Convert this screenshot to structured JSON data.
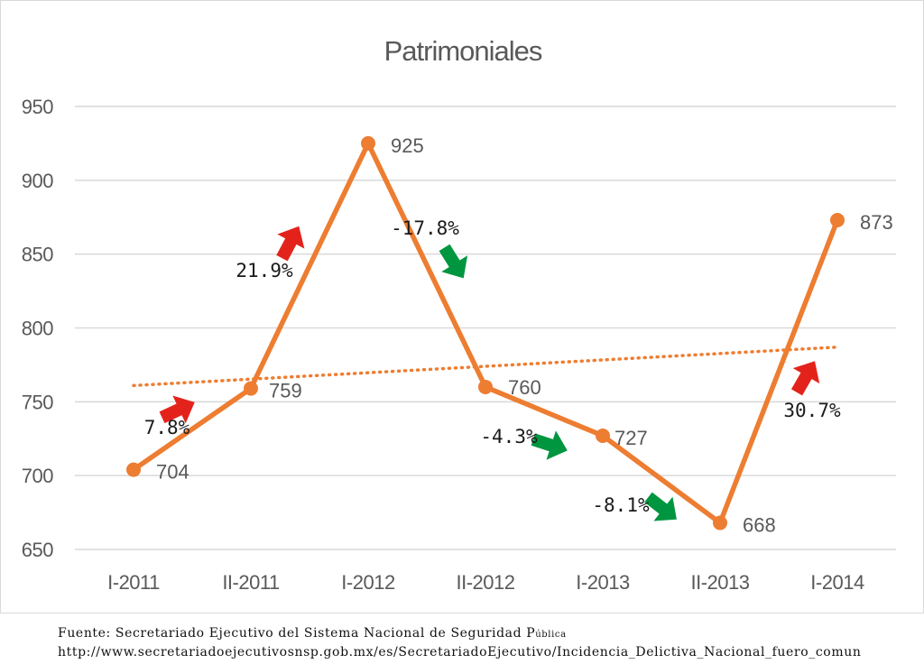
{
  "chart_data": {
    "type": "line",
    "title": "Patrimoniales",
    "categories": [
      "I-2011",
      "II-2011",
      "I-2012",
      "II-2012",
      "I-2013",
      "II-2013",
      "I-2014"
    ],
    "values": [
      704,
      759,
      925,
      760,
      727,
      668,
      873
    ],
    "ylim": [
      650,
      950
    ],
    "yticks": [
      650,
      700,
      750,
      800,
      850,
      900,
      950
    ],
    "grid": true,
    "trendline": {
      "style": "dotted linear",
      "start": 761,
      "end": 787
    },
    "changes": [
      {
        "label": "7.8%",
        "direction": "up"
      },
      {
        "label": "21.9%",
        "direction": "up"
      },
      {
        "label": "-17.8%",
        "direction": "down"
      },
      {
        "label": "-4.3%",
        "direction": "down"
      },
      {
        "label": "-8.1%",
        "direction": "down"
      },
      {
        "label": "30.7%",
        "direction": "up"
      }
    ],
    "colors": {
      "series": "#ED7D31",
      "up_arrow": "#E3231B",
      "down_arrow": "#009640",
      "grid": "#d9d9d9",
      "text": "#595959"
    }
  },
  "footer": {
    "source": "Fuente: Secretariado Ejecutivo del Sistema Nacional de Seguridad P",
    "source_small": "ública",
    "url": "http://www.secretariadoejecutivosnsp.gob.mx/es/SecretariadoEjecutivo/Incidencia_Delictiva_Nacional_fuero_comun"
  }
}
